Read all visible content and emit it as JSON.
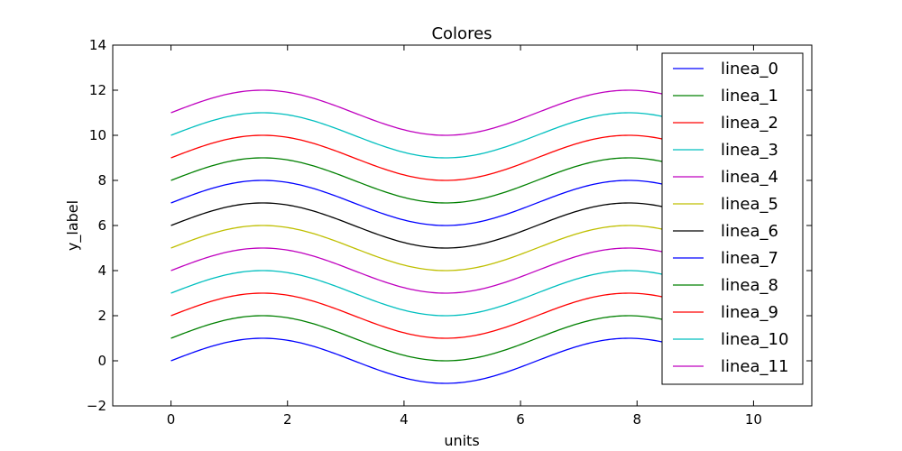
{
  "chart_data": {
    "type": "line",
    "title": "Colores",
    "xlabel": "units",
    "ylabel": "y_label",
    "xlim": [
      -1,
      11
    ],
    "ylim": [
      -2,
      14
    ],
    "xticks": [
      0,
      2,
      4,
      6,
      8,
      10
    ],
    "yticks": [
      -2,
      0,
      2,
      4,
      6,
      8,
      10,
      12,
      14
    ],
    "x_range": [
      0,
      10
    ],
    "grid": false,
    "legend_position": "right",
    "series": [
      {
        "name": "linea_0",
        "color": "#0000ff",
        "formula": "sin(x) + 0",
        "x_start": 0,
        "x_end": 10
      },
      {
        "name": "linea_1",
        "color": "#008000",
        "formula": "sin(x) + 1",
        "x_start": 0,
        "x_end": 10
      },
      {
        "name": "linea_2",
        "color": "#ff0000",
        "formula": "sin(x) + 2",
        "x_start": 0,
        "x_end": 10
      },
      {
        "name": "linea_3",
        "color": "#00bfbf",
        "formula": "sin(x) + 3",
        "x_start": 0,
        "x_end": 10
      },
      {
        "name": "linea_4",
        "color": "#bf00bf",
        "formula": "sin(x) + 4",
        "x_start": 0,
        "x_end": 10
      },
      {
        "name": "linea_5",
        "color": "#bfbf00",
        "formula": "sin(x) + 5",
        "x_start": 0,
        "x_end": 10
      },
      {
        "name": "linea_6",
        "color": "#000000",
        "formula": "sin(x) + 6",
        "x_start": 0,
        "x_end": 10
      },
      {
        "name": "linea_7",
        "color": "#0000ff",
        "formula": "sin(x) + 7",
        "x_start": 0,
        "x_end": 10
      },
      {
        "name": "linea_8",
        "color": "#008000",
        "formula": "sin(x) + 8",
        "x_start": 0,
        "x_end": 10
      },
      {
        "name": "linea_9",
        "color": "#ff0000",
        "formula": "sin(x) + 9",
        "x_start": 0,
        "x_end": 10
      },
      {
        "name": "linea_10",
        "color": "#00bfbf",
        "formula": "sin(x) + 10",
        "x_start": 0,
        "x_end": 10
      },
      {
        "name": "linea_11",
        "color": "#bf00bf",
        "formula": "sin(x) + 11",
        "x_start": 0,
        "x_end": 10
      }
    ]
  }
}
